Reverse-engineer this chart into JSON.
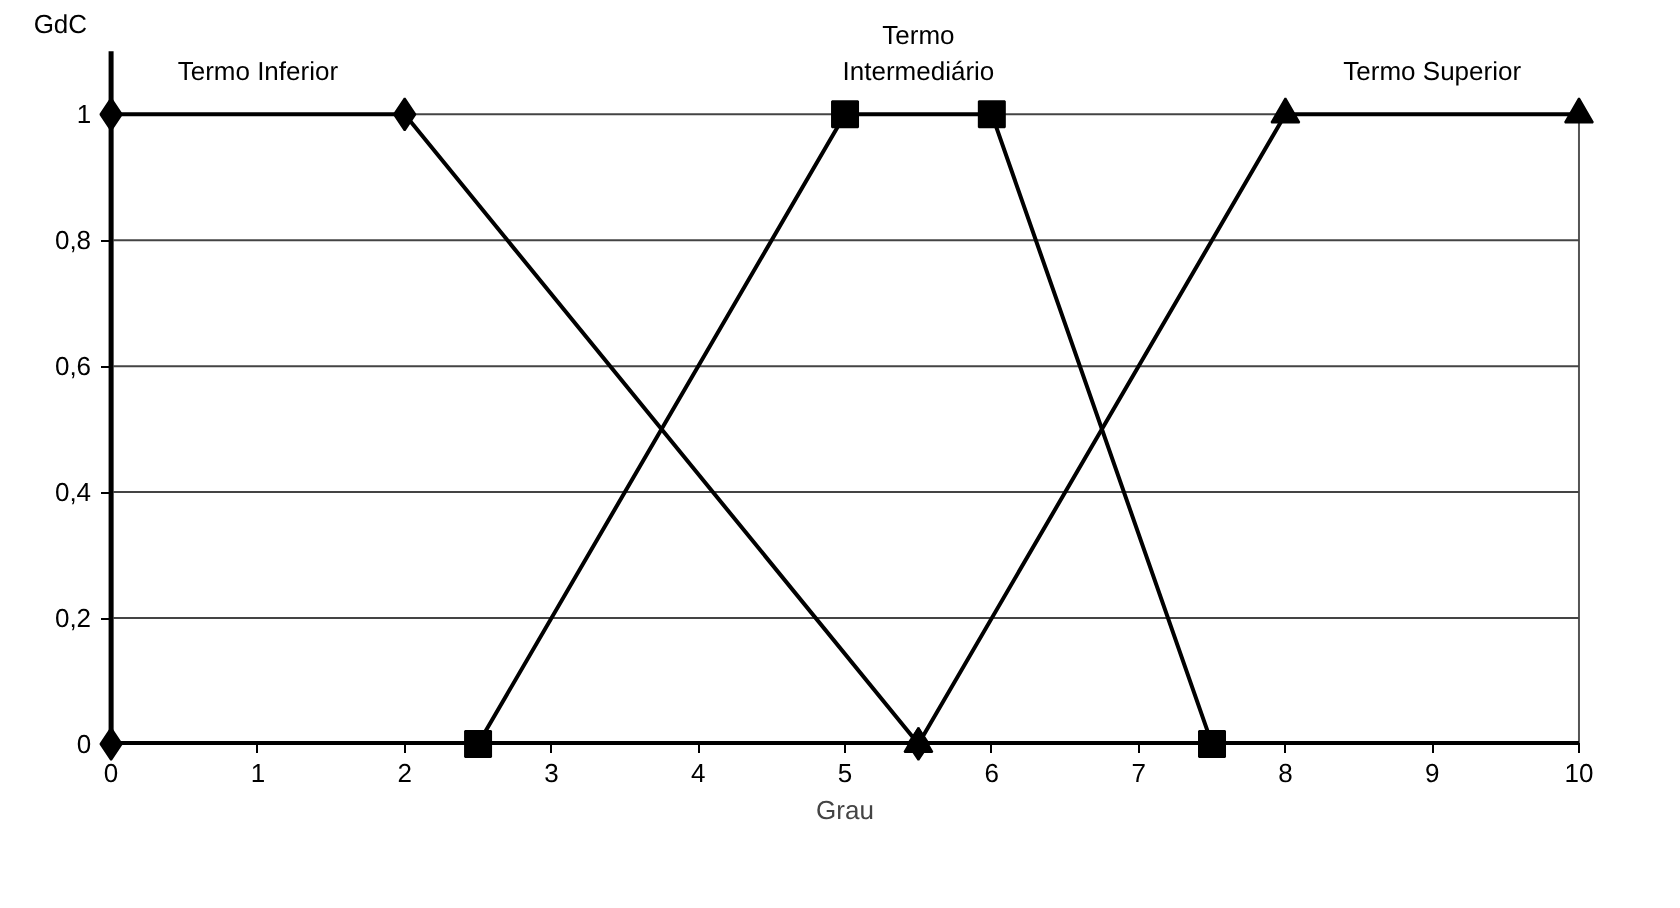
{
  "chart_data": {
    "type": "line",
    "xlabel": "Grau",
    "ylabel": "GdC",
    "xlim": [
      0,
      10
    ],
    "ylim": [
      0,
      1
    ],
    "xticks": [
      0,
      1,
      2,
      3,
      4,
      5,
      6,
      7,
      8,
      9,
      10
    ],
    "yticks": [
      0,
      {
        "value": 0.2,
        "label": "0,2"
      },
      {
        "value": 0.4,
        "label": "0,4"
      },
      {
        "value": 0.6,
        "label": "0,6"
      },
      {
        "value": 0.8,
        "label": "0,8"
      },
      1
    ],
    "grid": "y",
    "legend": false,
    "line_style": "solid",
    "series": [
      {
        "name": "Termo Inferior",
        "color": "#000000",
        "marker": "diamond",
        "x": [
          0,
          0,
          2,
          5.5
        ],
        "values": [
          0,
          1,
          1,
          0
        ]
      },
      {
        "name": "Termo Intermediário",
        "color": "#000000",
        "marker": "square",
        "x": [
          2.5,
          5,
          6,
          7.5
        ],
        "values": [
          0,
          1,
          1,
          0
        ]
      },
      {
        "name": "Termo Superior",
        "color": "#000000",
        "marker": "triangle",
        "x": [
          5.5,
          8,
          10
        ],
        "values": [
          0,
          1,
          1
        ]
      }
    ]
  }
}
